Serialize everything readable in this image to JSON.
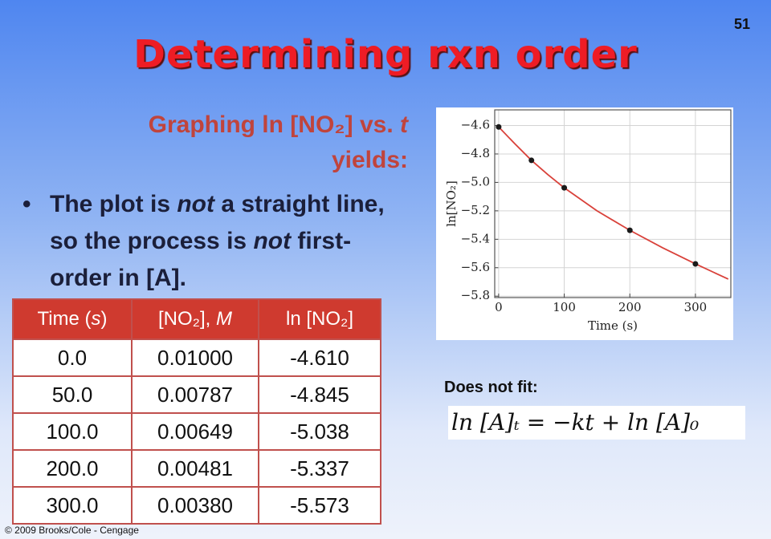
{
  "slide": {
    "page_number": "51",
    "title": "Determining rxn order",
    "subtitle": [
      "Graphing ln [NO₂] vs. ",
      "t",
      " yields:"
    ],
    "bullet": [
      "The plot is ",
      "not",
      " a straight line, so the process is ",
      "not",
      " first-order in [A]."
    ],
    "fit_label": "Does not fit:",
    "equation": "ln [A]ₜ = −kt + ln [A]₀",
    "copyright": "© 2009 Brooks/Cole - Cengage"
  },
  "table": {
    "header": [
      [
        "Time (",
        "s",
        ")"
      ],
      [
        "[NO₂], ",
        "M"
      ],
      [
        "ln [NO₂]"
      ]
    ],
    "rows": [
      [
        "0.0",
        "0.01000",
        "-4.610"
      ],
      [
        "50.0",
        "0.00787",
        "-4.845"
      ],
      [
        "100.0",
        "0.00649",
        "-5.038"
      ],
      [
        "200.0",
        "0.00481",
        "-5.337"
      ],
      [
        "300.0",
        "0.00380",
        "-5.573"
      ]
    ]
  },
  "chart_data": {
    "type": "scatter",
    "x_label": "Time (s)",
    "y_label": "ln[NO₂]",
    "x": [
      0,
      50,
      100,
      200,
      300
    ],
    "series": [
      {
        "color": "#1a1a1a",
        "values": [
          -4.61,
          -4.845,
          -5.038,
          -5.337,
          -5.573
        ]
      },
      {
        "color": "#d9413a",
        "x": [
          0,
          25,
          50,
          75,
          100,
          150,
          200,
          250,
          300,
          350
        ],
        "values": [
          -4.61,
          -4.73,
          -4.845,
          -4.945,
          -5.038,
          -5.2,
          -5.337,
          -5.46,
          -5.573,
          -5.68
        ]
      }
    ],
    "xlim": [
      -6,
      354
    ],
    "ylim": [
      -5.81,
      -4.49
    ],
    "xticks": [
      0,
      100,
      200,
      300
    ],
    "yticks": [
      {
        "value": -4.6,
        "label": "−4.6"
      },
      {
        "value": -4.8,
        "label": "−4.8"
      },
      {
        "value": -5.0,
        "label": "−5.0"
      },
      {
        "value": -5.2,
        "label": "−5.2"
      },
      {
        "value": -5.4,
        "label": "−5.4"
      },
      {
        "value": -5.6,
        "label": "−5.6"
      },
      {
        "value": -5.8,
        "label": "−5.8"
      }
    ],
    "grid": true
  }
}
